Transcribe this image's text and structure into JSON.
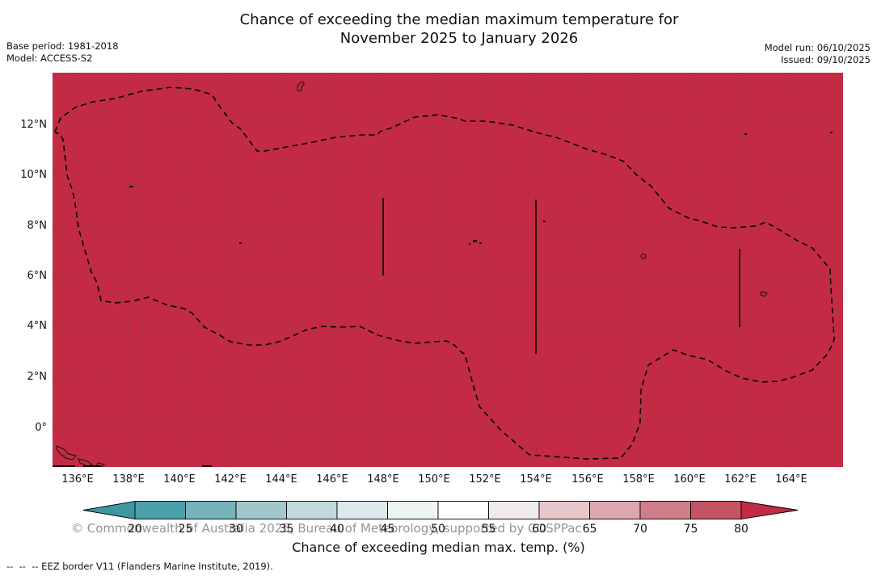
{
  "header": {
    "title_line1": "Chance of exceeding the median maximum temperature for",
    "title_line2": "November 2025 to January 2026",
    "base_period": "Base period: 1981-2018",
    "model": "Model: ACCESS-S2",
    "model_run": "Model run: 06/10/2025",
    "issued": "Issued: 09/10/2025"
  },
  "map": {
    "watermark": "© Commonwealth of Australia 2025, Bureau of Meteorology, supported by COSPPac",
    "y_ticks": [
      "12°N",
      "10°N",
      "8°N",
      "6°N",
      "4°N",
      "2°N",
      "0°"
    ],
    "x_ticks": [
      "136°E",
      "138°E",
      "140°E",
      "142°E",
      "144°E",
      "146°E",
      "148°E",
      "150°E",
      "152°E",
      "154°E",
      "156°E",
      "158°E",
      "160°E",
      "162°E",
      "164°E"
    ],
    "fill_color": "#c32b45",
    "eez_border_color": "#000000"
  },
  "colorbar": {
    "ticks": [
      "20",
      "25",
      "30",
      "35",
      "40",
      "45",
      "50",
      "55",
      "60",
      "65",
      "70",
      "75",
      "80"
    ],
    "segment_colors": [
      "#4ba1ab",
      "#76b4bb",
      "#a0c7cc",
      "#c2d8da",
      "#dce8e9",
      "#eef3f3",
      "#ffffff",
      "#f0eaeb",
      "#e6c8cc",
      "#dca7af",
      "#d07e8a",
      "#c45363"
    ],
    "left_arrow_color": "#3d97a1",
    "right_arrow_color": "#c22b44",
    "caption": "Chance of exceeding median max. temp. (%)"
  },
  "footer": {
    "eez_note": "--  --  -- EEZ border V11 (Flanders Marine Institute, 2019)."
  },
  "chart_data": {
    "type": "heatmap",
    "title": "Chance of exceeding the median maximum temperature for November 2025 to January 2026",
    "region": {
      "lon_ticks": [
        "136°E",
        "138°E",
        "140°E",
        "142°E",
        "144°E",
        "146°E",
        "148°E",
        "150°E",
        "152°E",
        "154°E",
        "156°E",
        "158°E",
        "160°E",
        "162°E",
        "164°E"
      ],
      "lat_ticks": [
        "12°N",
        "10°N",
        "8°N",
        "6°N",
        "4°N",
        "2°N",
        "0°"
      ]
    },
    "field": "Chance of exceeding median max. temp. (%)",
    "field_value": "uniform, above 80% over the entire mapped EEZ region",
    "colorbar_scale": {
      "min": 20,
      "max": 80,
      "step": 5,
      "low_color": "teal",
      "mid_color": "white",
      "high_color": "dark red"
    },
    "overlays": [
      "dashed EEZ border V11 outline",
      "small island outlines (Guam, Yap, Chuuk, Kosrae, PNG islands)"
    ],
    "grid": "dotted latitude lines every 2°, faint longitude lines every 2°",
    "legend_position": "horizontal colorbar below map"
  }
}
